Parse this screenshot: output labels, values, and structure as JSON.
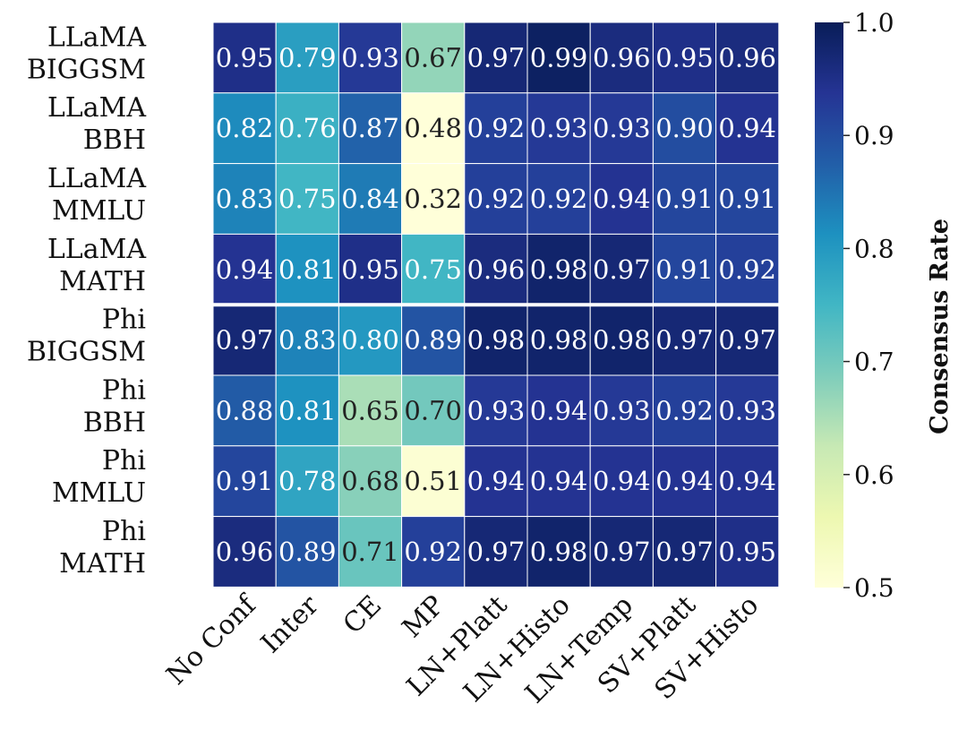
{
  "chart_data": {
    "type": "heatmap",
    "title": "",
    "xlabel": "",
    "ylabel": "",
    "rows": [
      "LLaMA\nBIGGSM",
      "LLaMA\nBBH",
      "LLaMA\nMMLU",
      "LLaMA\nMATH",
      "Phi\nBIGGSM",
      "Phi\nBBH",
      "Phi\nMMLU",
      "Phi\nMATH"
    ],
    "columns": [
      "No Conf",
      "Inter",
      "CE",
      "MP",
      "LN+Platt",
      "LN+Histo",
      "LN+Temp",
      "SV+Platt",
      "SV+Histo"
    ],
    "values": [
      [
        0.95,
        0.79,
        0.93,
        0.67,
        0.97,
        0.99,
        0.96,
        0.95,
        0.96
      ],
      [
        0.82,
        0.76,
        0.87,
        0.48,
        0.92,
        0.93,
        0.93,
        0.9,
        0.94
      ],
      [
        0.83,
        0.75,
        0.84,
        0.32,
        0.92,
        0.92,
        0.94,
        0.91,
        0.91
      ],
      [
        0.94,
        0.81,
        0.95,
        0.75,
        0.96,
        0.98,
        0.97,
        0.91,
        0.92
      ],
      [
        0.97,
        0.83,
        0.8,
        0.89,
        0.98,
        0.98,
        0.98,
        0.97,
        0.97
      ],
      [
        0.88,
        0.81,
        0.65,
        0.7,
        0.93,
        0.94,
        0.93,
        0.92,
        0.93
      ],
      [
        0.91,
        0.78,
        0.68,
        0.51,
        0.94,
        0.94,
        0.94,
        0.94,
        0.94
      ],
      [
        0.96,
        0.89,
        0.71,
        0.92,
        0.97,
        0.98,
        0.97,
        0.97,
        0.95
      ]
    ],
    "colorbar": {
      "label": "Consensus Rate",
      "range": [
        0.5,
        1.0
      ],
      "ticks": [
        0.5,
        0.6,
        0.7,
        0.8,
        0.9,
        1.0
      ],
      "tick_labels": [
        "0.5",
        "0.6",
        "0.7",
        "0.8",
        "0.9",
        "1.0"
      ],
      "colormap": "YlGnBu"
    },
    "separator_after_row": 4,
    "colors": {
      "grid_line": "#ffffff",
      "text_light": "#ffffff",
      "text_dark": "#222222",
      "axis": "#222222"
    }
  }
}
